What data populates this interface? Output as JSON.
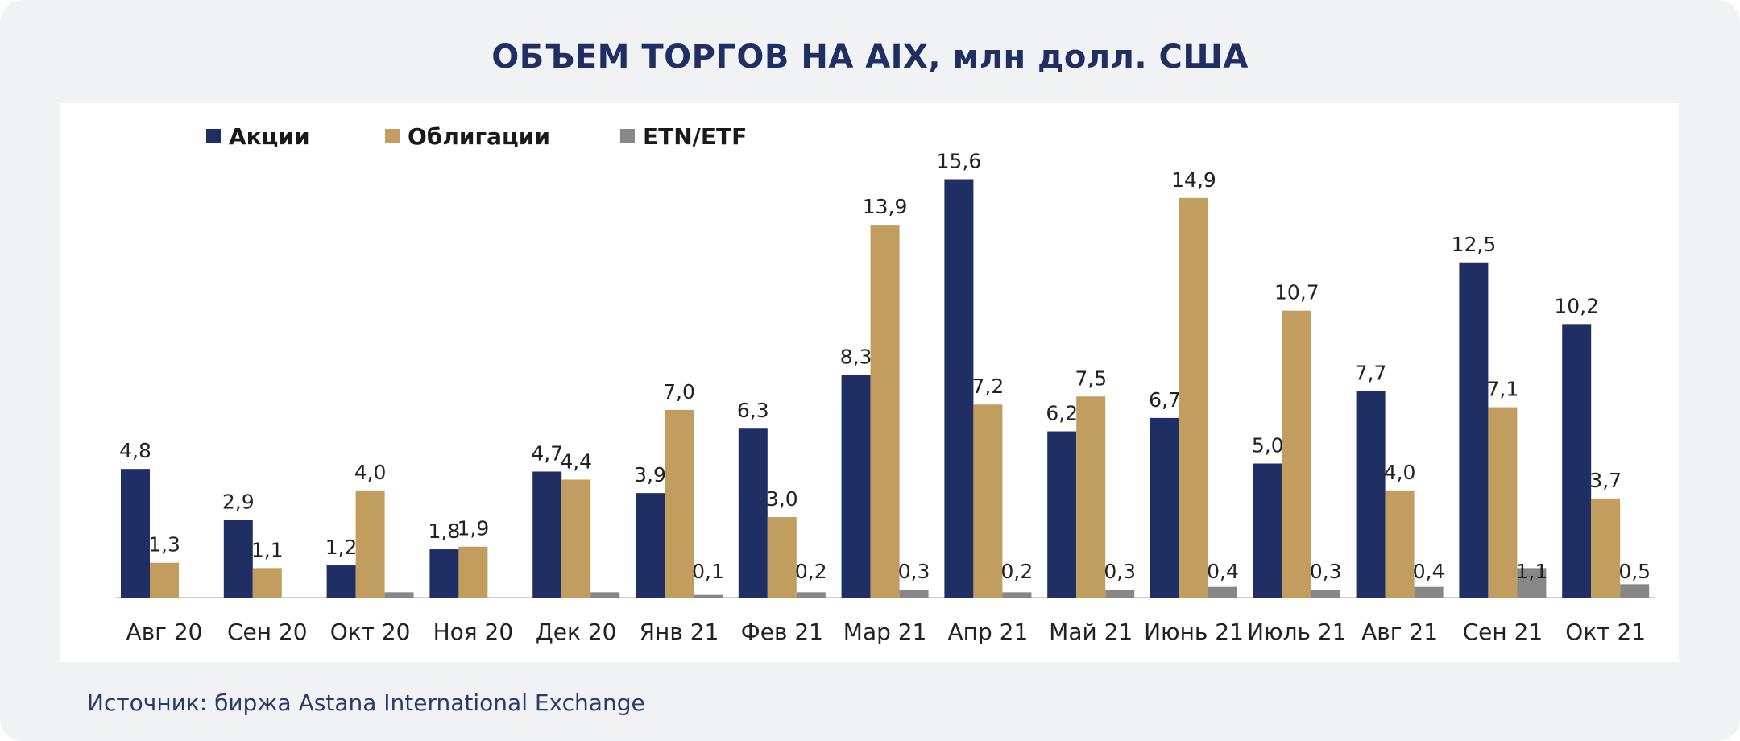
{
  "title": "ОБЪЕМ ТОРГОВ НА AIX,  млн долл. США",
  "source": "Источник: биржа Astana International Exchange",
  "colors": {
    "stocks": "#1f2f63",
    "bonds": "#c19d5f",
    "etn": "#878787"
  },
  "chart_data": {
    "type": "bar",
    "title": "ОБЪЕМ ТОРГОВ НА AIX,  млн долл. США",
    "legend_position": "top-left",
    "grid": false,
    "ylim": [
      0,
      17
    ],
    "categories": [
      "Авг 20",
      "Сен 20",
      "Окт 20",
      "Ноя 20",
      "Дек 20",
      "Янв 21",
      "Фев 21",
      "Мар 21",
      "Апр 21",
      "Май 21",
      "Июнь 21",
      "Июль 21",
      "Авг 21",
      "Сен 21",
      "Окт 21"
    ],
    "series": [
      {
        "name": "Акции",
        "values": [
          4.8,
          2.9,
          1.2,
          1.8,
          4.7,
          3.9,
          6.3,
          8.3,
          15.6,
          6.2,
          6.7,
          5.0,
          7.7,
          12.5,
          10.2
        ],
        "labels": [
          "4,8",
          "2,9",
          "1,2",
          "1,8",
          "4,7",
          "3,9",
          "6,3",
          "8,3",
          "15,6",
          "6,2",
          "6,7",
          "5,0",
          "7,7",
          "12,5",
          "10,2"
        ]
      },
      {
        "name": "Облигации",
        "values": [
          1.3,
          1.1,
          4.0,
          1.9,
          4.4,
          7.0,
          3.0,
          13.9,
          7.2,
          7.5,
          14.9,
          10.7,
          4.0,
          7.1,
          3.7
        ],
        "labels": [
          "1,3",
          "1,1",
          "4,0",
          "1,9",
          "4,4",
          "7,0",
          "3,0",
          "13,9",
          "7,2",
          "7,5",
          "14,9",
          "10,7",
          "4,0",
          "7,1",
          "3,7"
        ]
      },
      {
        "name": "ETN/ETF",
        "values": [
          0,
          0,
          0.2,
          0,
          0.2,
          0.1,
          0.2,
          0.3,
          0.2,
          0.3,
          0.4,
          0.3,
          0.4,
          1.1,
          0.5
        ],
        "labels": [
          "",
          "",
          "",
          "",
          "",
          "0,1",
          "0,2",
          "0,3",
          "0,2",
          "0,3",
          "0,4",
          "0,3",
          "0,4",
          "1,1",
          "0,5"
        ]
      }
    ]
  }
}
